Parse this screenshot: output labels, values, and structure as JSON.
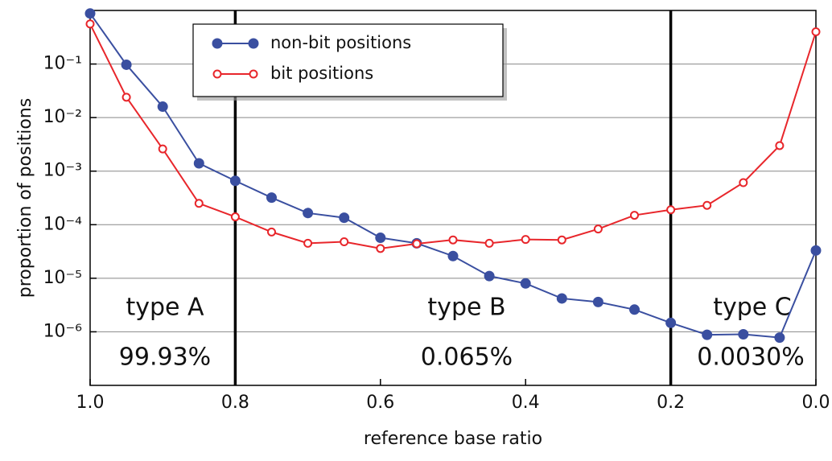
{
  "chart_data": {
    "type": "line",
    "x_label": "reference base ratio",
    "y_label": "proportion of positions",
    "x": [
      1.0,
      0.95,
      0.9,
      0.85,
      0.8,
      0.75,
      0.7,
      0.65,
      0.6,
      0.55,
      0.5,
      0.45,
      0.4,
      0.35,
      0.3,
      0.25,
      0.2,
      0.15,
      0.1,
      0.05,
      0.0
    ],
    "series": [
      {
        "name": "non-bit positions",
        "color": "#3a4fa0",
        "marker": "filled",
        "values": [
          0.88,
          0.097,
          0.016,
          0.0014,
          0.00066,
          0.00032,
          0.000165,
          0.000135,
          5.7e-05,
          4.5e-05,
          2.6e-05,
          1.1e-05,
          8e-06,
          4.2e-06,
          3.6e-06,
          2.6e-06,
          1.47e-06,
          8.8e-07,
          9e-07,
          7.8e-07,
          3.3e-05
        ]
      },
      {
        "name": "bit positions",
        "color": "#e8262b",
        "marker": "open",
        "values": [
          0.56,
          0.024,
          0.0026,
          0.00025,
          0.00014,
          7.3e-05,
          4.5e-05,
          4.8e-05,
          3.6e-05,
          4.4e-05,
          5.2e-05,
          4.5e-05,
          5.3e-05,
          5.2e-05,
          8.3e-05,
          0.00015,
          0.00019,
          0.00023,
          0.00061,
          0.003,
          0.4
        ]
      }
    ],
    "xlim": [
      1,
      0
    ],
    "xticks": [
      {
        "value": 1,
        "label": "1.0"
      },
      0.8,
      0.6,
      0.4,
      0.2,
      {
        "value": 0,
        "label": "0.0"
      }
    ],
    "ylim": [
      1e-07,
      1
    ],
    "yticks": [
      {
        "value": 0.1,
        "label": "10⁻¹"
      },
      {
        "value": 0.01,
        "label": "10⁻²"
      },
      {
        "value": 0.001,
        "label": "10⁻³"
      },
      {
        "value": 0.0001,
        "label": "10⁻⁴"
      },
      {
        "value": 1e-05,
        "label": "10⁻⁵"
      },
      {
        "value": 1e-06,
        "label": "10⁻⁶"
      }
    ],
    "log_y": true,
    "grid": true,
    "legend": "upper left",
    "vlines": [
      0.8,
      0.2
    ],
    "annotations": [
      "type A",
      "99.93%",
      "type B",
      "0.065%",
      "type C",
      "0.0030%"
    ]
  }
}
